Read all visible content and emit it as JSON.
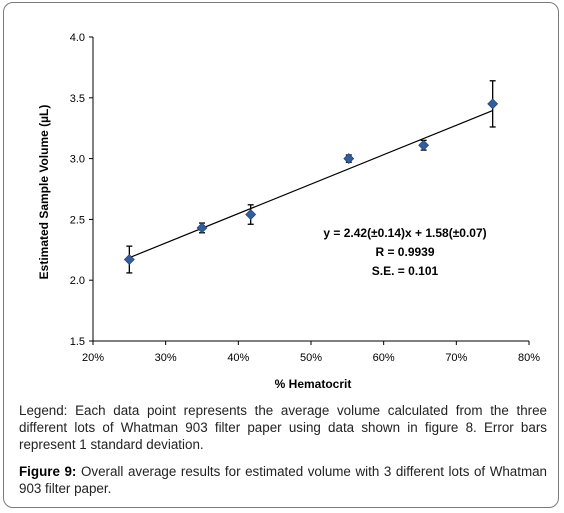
{
  "chart_data": {
    "type": "scatter",
    "xlabel": "% Hematocrit",
    "ylabel": "Estimated Sample Volume (µL)",
    "xlim": [
      0.2,
      0.8
    ],
    "ylim": [
      1.5,
      4.0
    ],
    "x_ticks": [
      "20%",
      "30%",
      "40%",
      "50%",
      "60%",
      "70%",
      "80%"
    ],
    "y_ticks": [
      "1.5",
      "2.0",
      "2.5",
      "3.0",
      "3.5",
      "4.0"
    ],
    "grid": false,
    "marker_color": "#2f5d9e",
    "points": [
      {
        "x": 0.25,
        "y": 2.17,
        "err": 0.11
      },
      {
        "x": 0.35,
        "y": 2.43,
        "err": 0.04
      },
      {
        "x": 0.417,
        "y": 2.54,
        "err": 0.08
      },
      {
        "x": 0.552,
        "y": 3.0,
        "err": 0.03
      },
      {
        "x": 0.655,
        "y": 3.11,
        "err": 0.04
      },
      {
        "x": 0.75,
        "y": 3.45,
        "err": 0.19
      }
    ],
    "fit": {
      "slope": 2.42,
      "intercept": 1.58
    },
    "annotation": [
      "y = 2.42(±0.14)x + 1.58(±0.07)",
      "R = 0.9939",
      "S.E. = 0.101"
    ]
  },
  "caption": {
    "legend_text": "Legend: Each data point represents the average volume calculated from the three different lots of Whatman 903 filter paper using data shown in figure 8. Error bars represent 1 standard deviation.",
    "figure_label": "Figure 9:",
    "figure_text": " Overall average results for estimated volume with 3 different lots of Whatman 903 filter paper."
  }
}
